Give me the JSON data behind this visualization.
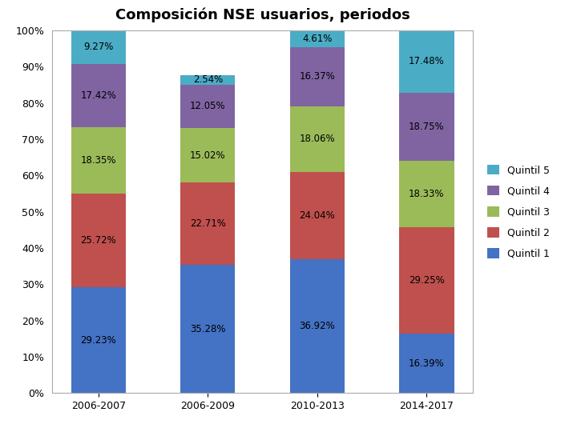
{
  "title": "Composición NSE usuarios, periodos",
  "categories": [
    "2006-2007",
    "2006-2009",
    "2010-2013",
    "2014-2017"
  ],
  "quintils": [
    "Quintil 1",
    "Quintil 2",
    "Quintil 3",
    "Quintil 4",
    "Quintil 5"
  ],
  "values": {
    "Quintil 1": [
      29.23,
      35.28,
      36.92,
      16.39
    ],
    "Quintil 2": [
      25.72,
      22.71,
      24.04,
      29.25
    ],
    "Quintil 3": [
      18.35,
      15.02,
      18.06,
      18.33
    ],
    "Quintil 4": [
      17.42,
      12.05,
      16.37,
      18.75
    ],
    "Quintil 5": [
      9.27,
      2.54,
      4.61,
      17.48
    ]
  },
  "colors": {
    "Quintil 1": "#4472C4",
    "Quintil 2": "#C0504D",
    "Quintil 3": "#9BBB59",
    "Quintil 4": "#8064A2",
    "Quintil 5": "#4BACC6"
  },
  "legend_labels": [
    "Quintil 5",
    "Quintil 4",
    "Quintil 3",
    "Quintil 2",
    "Quintil 1"
  ],
  "ylabel_ticks": [
    "0%",
    "10%",
    "20%",
    "30%",
    "40%",
    "50%",
    "60%",
    "70%",
    "80%",
    "90%",
    "100%"
  ],
  "background_color": "#FFFFFF",
  "chart_bg": "#FFFFFF",
  "title_fontsize": 13,
  "tick_fontsize": 9,
  "label_fontsize": 8.5
}
